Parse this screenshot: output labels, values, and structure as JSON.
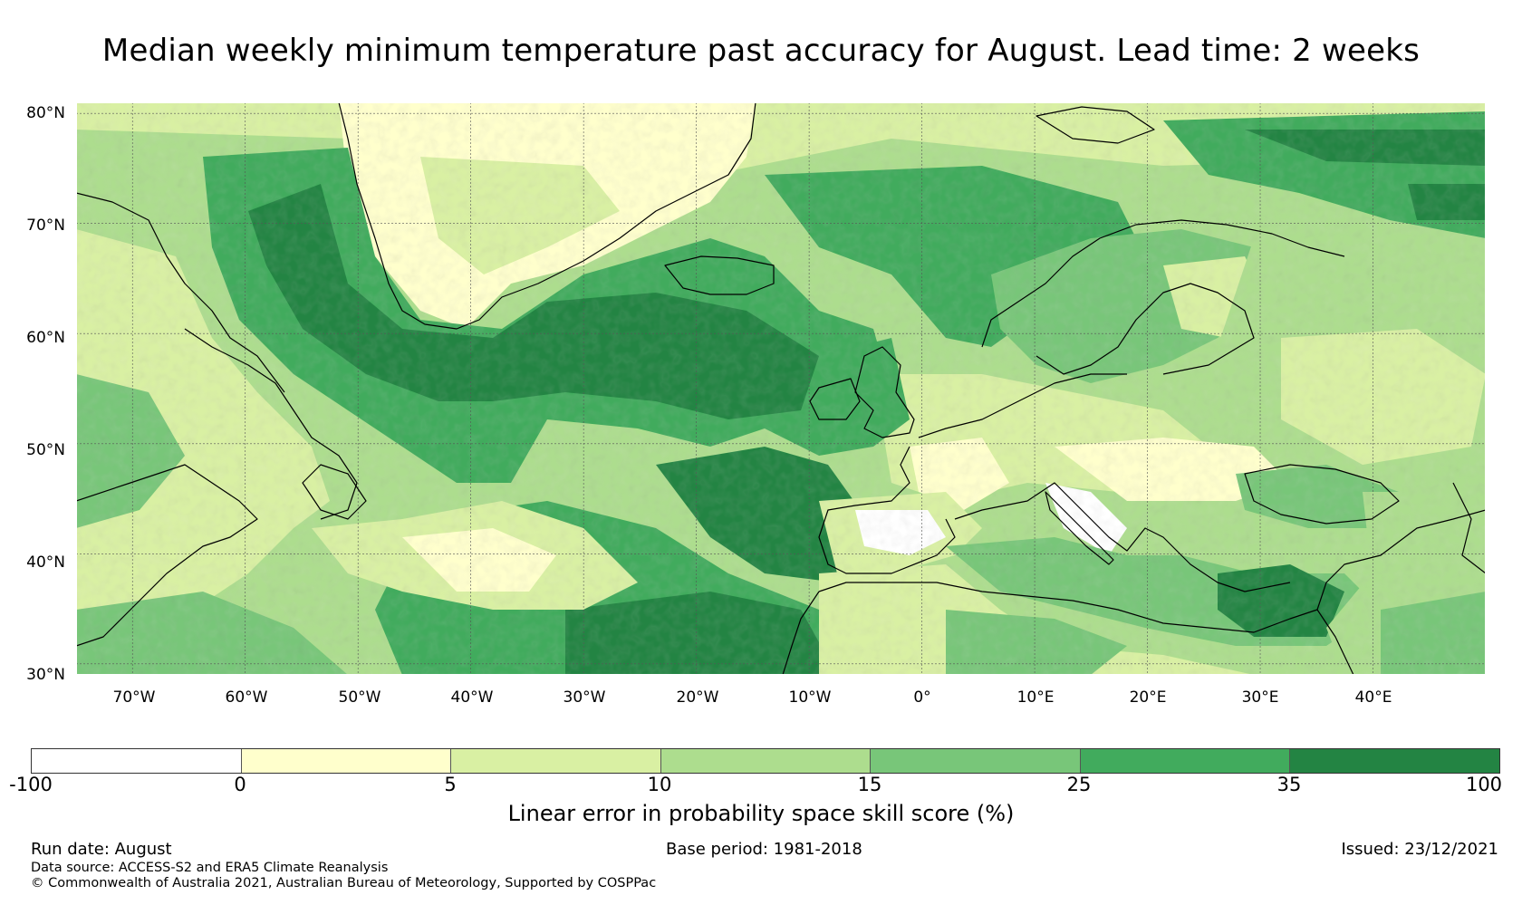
{
  "title": "Median weekly minimum temperature past accuracy for August. Lead time: 2 weeks",
  "map": {
    "lat_labels": [
      {
        "value": 80,
        "text": "80°N"
      },
      {
        "value": 70,
        "text": "70°N"
      },
      {
        "value": 60,
        "text": "60°N"
      },
      {
        "value": 50,
        "text": "50°N"
      },
      {
        "value": 40,
        "text": "40°N"
      },
      {
        "value": 30,
        "text": "30°N"
      }
    ],
    "lon_labels": [
      {
        "value": -70,
        "text": "70°W"
      },
      {
        "value": -60,
        "text": "60°W"
      },
      {
        "value": -50,
        "text": "50°W"
      },
      {
        "value": -40,
        "text": "40°W"
      },
      {
        "value": -30,
        "text": "30°W"
      },
      {
        "value": -20,
        "text": "20°W"
      },
      {
        "value": -10,
        "text": "10°W"
      },
      {
        "value": 0,
        "text": "0°"
      },
      {
        "value": 10,
        "text": "10°E"
      },
      {
        "value": 20,
        "text": "20°E"
      },
      {
        "value": 30,
        "text": "30°E"
      },
      {
        "value": 40,
        "text": "40°E"
      }
    ],
    "extent": {
      "lon_min": -75,
      "lon_max": 50,
      "lat_min": 29,
      "lat_max": 81
    }
  },
  "colorbar": {
    "ticks": [
      "-100",
      "0",
      "5",
      "10",
      "15",
      "25",
      "35",
      "100"
    ],
    "colors": [
      "#ffffff",
      "#ffffcc",
      "#d9f0a3",
      "#addd8e",
      "#78c679",
      "#41ab5d",
      "#238443"
    ],
    "label": "Linear error in probability space skill score (%)"
  },
  "footer": {
    "run_date": "Run date: August",
    "base_period": "Base period: 1981-2018",
    "issued": "Issued: 23/12/2021",
    "data_source": "Data source: ACCESS-S2 and ERA5 Climate Reanalysis",
    "copyright": "© Commonwealth of Australia 2021, Australian Bureau of Meteorology, Supported by COSPPac"
  }
}
